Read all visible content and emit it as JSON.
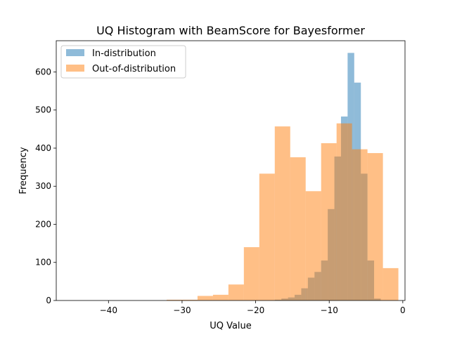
{
  "chart_data": {
    "type": "bar",
    "title": "UQ Histogram with BeamScore for Bayesformer",
    "xlabel": "UQ Value",
    "ylabel": "Frequency",
    "xlim": [
      -47.1,
      0.3
    ],
    "ylim": [
      0,
      682
    ],
    "xticks": [
      -40,
      -30,
      -20,
      -10,
      0
    ],
    "xtick_labels": [
      "−40",
      "−30",
      "−20",
      "−10",
      "0"
    ],
    "yticks": [
      0,
      100,
      200,
      300,
      400,
      500,
      600
    ],
    "ytick_labels": [
      "0",
      "100",
      "200",
      "300",
      "400",
      "500",
      "600"
    ],
    "legend_position": "top-left",
    "series": [
      {
        "name": "In-distribution",
        "color": "#1f77b4",
        "alpha": 0.5,
        "bins": [
          [
            -17.4,
            -16.5,
            2
          ],
          [
            -16.5,
            -15.6,
            5
          ],
          [
            -15.6,
            -14.7,
            8
          ],
          [
            -14.7,
            -13.8,
            15
          ],
          [
            -13.8,
            -12.9,
            32
          ],
          [
            -12.9,
            -12.0,
            60
          ],
          [
            -12.0,
            -11.1,
            75
          ],
          [
            -11.1,
            -10.2,
            105
          ],
          [
            -10.2,
            -9.3,
            240
          ],
          [
            -9.3,
            -8.4,
            378
          ],
          [
            -8.4,
            -7.5,
            483
          ],
          [
            -7.5,
            -6.6,
            650
          ],
          [
            -6.6,
            -5.7,
            572
          ],
          [
            -5.7,
            -4.8,
            333
          ],
          [
            -4.8,
            -3.9,
            105
          ],
          [
            -3.9,
            -3.0,
            5
          ]
        ]
      },
      {
        "name": "Out-of-distribution",
        "color": "#ff7f0e",
        "alpha": 0.5,
        "bins": [
          [
            -44.7,
            -42.6,
            0
          ],
          [
            -42.6,
            -40.5,
            0
          ],
          [
            -40.5,
            -38.4,
            0
          ],
          [
            -38.4,
            -36.3,
            0
          ],
          [
            -36.3,
            -34.2,
            0
          ],
          [
            -34.2,
            -32.1,
            0
          ],
          [
            -32.1,
            -30.0,
            2
          ],
          [
            -30.0,
            -27.9,
            2
          ],
          [
            -27.9,
            -25.8,
            12
          ],
          [
            -25.8,
            -23.7,
            15
          ],
          [
            -23.7,
            -21.6,
            42
          ],
          [
            -21.6,
            -19.5,
            140
          ],
          [
            -19.5,
            -17.4,
            333
          ],
          [
            -17.4,
            -15.3,
            457
          ],
          [
            -15.3,
            -13.2,
            376
          ],
          [
            -13.2,
            -11.1,
            287
          ],
          [
            -11.1,
            -9.0,
            413
          ],
          [
            -9.0,
            -6.9,
            465
          ],
          [
            -6.9,
            -4.8,
            397
          ],
          [
            -4.8,
            -2.7,
            387
          ],
          [
            -2.7,
            -0.6,
            85
          ]
        ]
      }
    ]
  }
}
